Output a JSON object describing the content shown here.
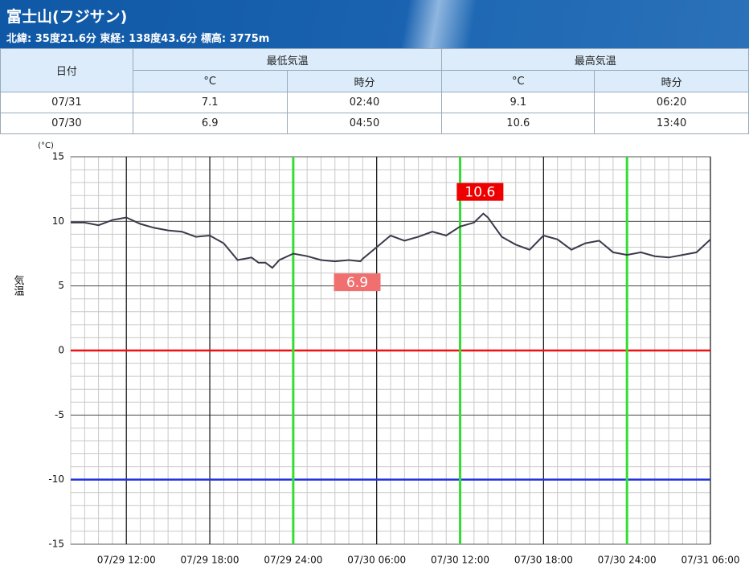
{
  "header": {
    "title": "富士山(フジサン)",
    "subtitle": "北緯: 35度21.6分 東経: 138度43.6分 標高: 3775m"
  },
  "table": {
    "headers": [
      "日付",
      "最低気温",
      "最高気温"
    ],
    "subheaders": [
      "°C",
      "時分",
      "°C",
      "時分"
    ],
    "rows": [
      [
        "07/31",
        "7.1",
        "02:40",
        "9.1",
        "06:20"
      ],
      [
        "07/30",
        "6.9",
        "04:50",
        "10.6",
        "13:40"
      ]
    ]
  },
  "chart_data": {
    "type": "line",
    "y_label": "気温",
    "unit": "(°C)",
    "color": "#3a3a4a",
    "x": [
      "07/29 08:00",
      "07/29 09:00",
      "07/29 10:00",
      "07/29 10:30",
      "07/29 11:00",
      "07/29 11:30",
      "07/29 12:00",
      "07/29 13:00",
      "07/29 14:00",
      "07/29 15:00",
      "07/29 16:00",
      "07/29 17:00",
      "07/29 18:00",
      "07/29 19:00",
      "07/29 20:00",
      "07/29 21:00",
      "07/29 21:30",
      "07/29 22:00",
      "07/29 22:30",
      "07/29 23:00",
      "07/30 00:00",
      "07/30 01:00",
      "07/30 02:00",
      "07/30 03:00",
      "07/30 04:00",
      "07/30 04:50",
      "07/30 05:00",
      "07/30 06:00",
      "07/30 07:00",
      "07/30 08:00",
      "07/30 09:00",
      "07/30 10:00",
      "07/30 11:00",
      "07/30 12:00",
      "07/30 13:00",
      "07/30 13:40",
      "07/30 14:00",
      "07/30 15:00",
      "07/30 16:00",
      "07/30 17:00",
      "07/30 18:00",
      "07/30 19:00",
      "07/30 20:00",
      "07/30 21:00",
      "07/30 22:00",
      "07/30 23:00",
      "07/31 00:00",
      "07/31 01:00",
      "07/31 02:00",
      "07/31 03:00",
      "07/31 04:00",
      "07/31 05:00",
      "07/31 06:00"
    ],
    "values": [
      9.9,
      9.9,
      9.7,
      9.9,
      10.1,
      10.2,
      10.3,
      9.8,
      9.5,
      9.3,
      9.2,
      8.8,
      8.9,
      8.3,
      7.0,
      7.2,
      6.8,
      6.8,
      6.4,
      7.0,
      7.5,
      7.3,
      7.0,
      6.9,
      7.0,
      6.9,
      7.1,
      8.0,
      8.9,
      8.5,
      8.8,
      9.2,
      8.9,
      9.6,
      9.9,
      10.6,
      10.3,
      8.8,
      8.2,
      7.8,
      8.9,
      8.6,
      7.8,
      8.3,
      8.5,
      7.6,
      7.4,
      7.6,
      7.3,
      7.2,
      7.4,
      7.6,
      8.6
    ],
    "xlim": [
      "07/29 08:00",
      "07/31 06:00"
    ],
    "xticks": [
      "07/29 12:00",
      "07/29 18:00",
      "07/29 24:00",
      "07/30 06:00",
      "07/30 12:00",
      "07/30 18:00",
      "07/30 24:00",
      "07/31 06:00"
    ],
    "ylim": [
      -15,
      15
    ],
    "yticks": [
      -15,
      -10,
      -5,
      0,
      5,
      10,
      15
    ],
    "grid": true,
    "minor_grid": true,
    "reference_lines": [
      {
        "axis": "y",
        "value": 0,
        "color": "#ee1111"
      },
      {
        "axis": "y",
        "value": -10,
        "color": "#2233dd"
      },
      {
        "axis": "x",
        "value": "07/29 24:00",
        "color": "#33dd33"
      },
      {
        "axis": "x",
        "value": "07/30 12:00",
        "color": "#33dd33"
      },
      {
        "axis": "x",
        "value": "07/30 24:00",
        "color": "#33dd33"
      }
    ],
    "annotations": [
      {
        "label": "10.6",
        "x": "07/30 13:40",
        "value": 10.6,
        "color": "#ee0000",
        "position": "above"
      },
      {
        "label": "6.9",
        "x": "07/30 04:50",
        "value": 6.9,
        "color": "#f07070",
        "position": "below"
      }
    ]
  }
}
